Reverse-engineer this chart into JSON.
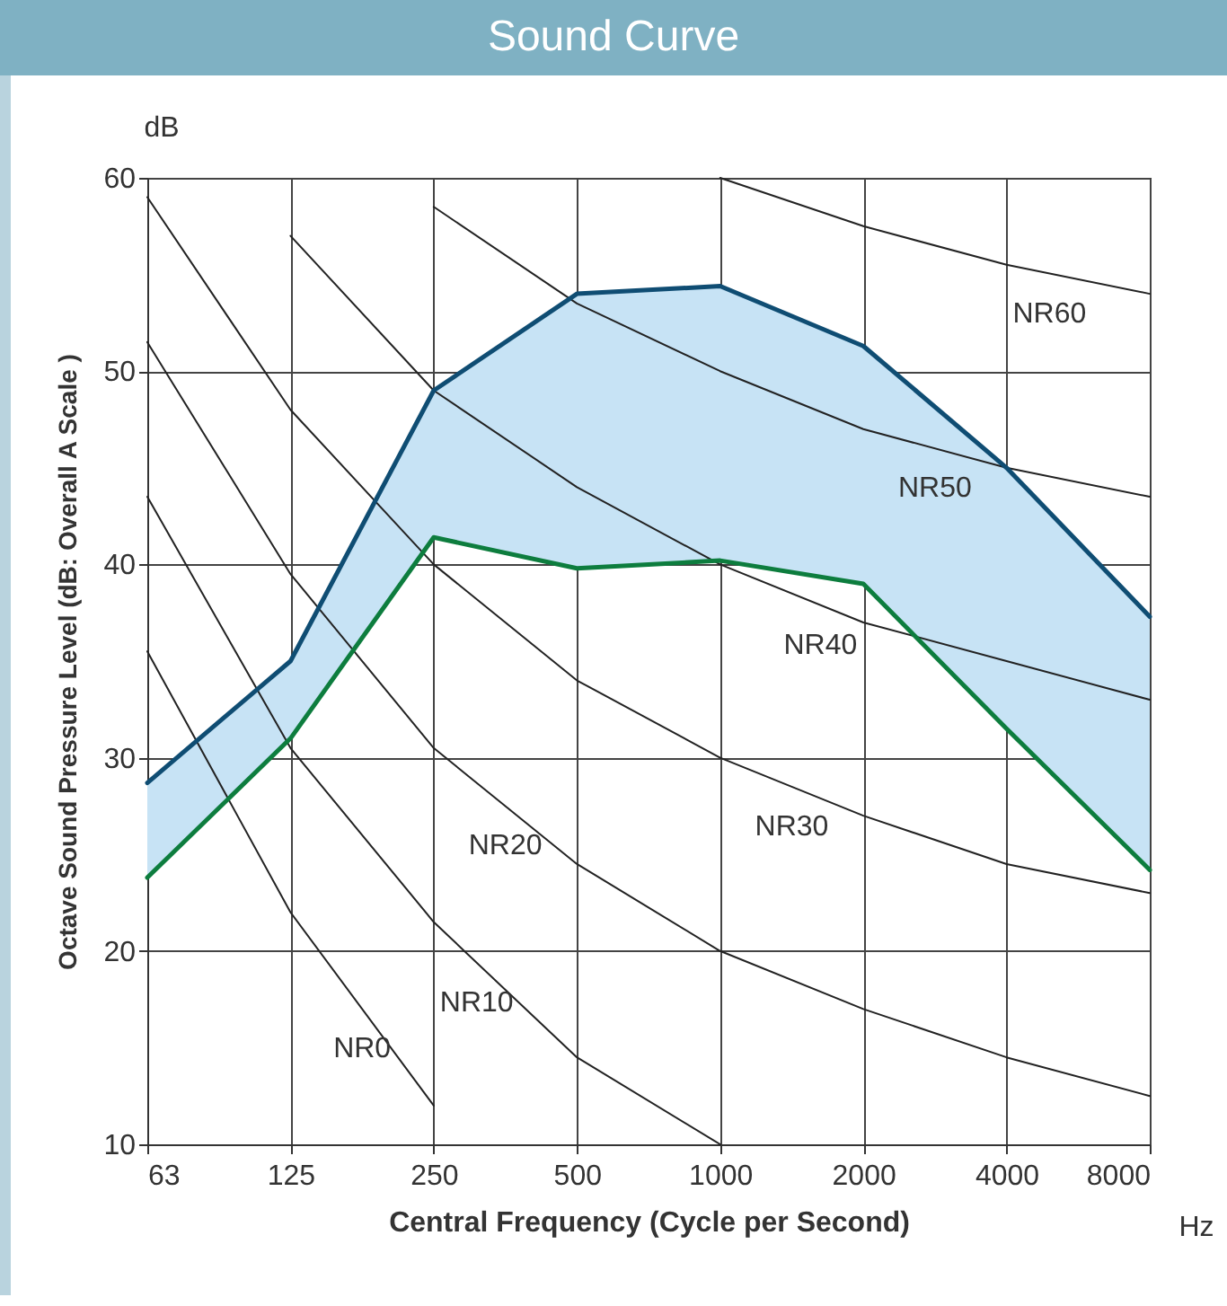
{
  "chart_data": {
    "type": "line",
    "title": "Sound Curve",
    "xlabel": "Central Frequency (Cycle per Second)",
    "ylabel": "Octave Sound Pressure Level (dB: Overall A Scale )",
    "annotations": [
      "dB",
      "Hz"
    ],
    "categories": [
      "63",
      "125",
      "250",
      "500",
      "1000",
      "2000",
      "4000",
      "8000"
    ],
    "ylim": [
      10,
      60
    ],
    "yticks": [
      10,
      20,
      30,
      40,
      50,
      60
    ],
    "grid": true,
    "series": [
      {
        "name": "NR0",
        "color": "#222222",
        "values": [
          35.5,
          22,
          12,
          null,
          null,
          null,
          null,
          null
        ]
      },
      {
        "name": "NR10",
        "color": "#222222",
        "values": [
          43.5,
          30.5,
          21.5,
          14.5,
          10,
          null,
          null,
          null
        ]
      },
      {
        "name": "NR20",
        "color": "#222222",
        "values": [
          51.5,
          39.5,
          30.5,
          24.5,
          20,
          17,
          14.5,
          12.5
        ]
      },
      {
        "name": "NR30",
        "color": "#222222",
        "values": [
          59,
          48,
          40,
          34,
          30,
          27,
          24.5,
          23
        ]
      },
      {
        "name": "NR40",
        "color": "#222222",
        "values": [
          null,
          57,
          49,
          44,
          40,
          37,
          35,
          33
        ]
      },
      {
        "name": "NR50",
        "color": "#222222",
        "values": [
          null,
          null,
          58.5,
          53.5,
          50,
          47,
          45,
          43.5
        ]
      },
      {
        "name": "NR60",
        "color": "#222222",
        "values": [
          null,
          null,
          null,
          null,
          60,
          57.5,
          55.5,
          54
        ]
      },
      {
        "color": "#0f4d73",
        "values": [
          28.7,
          35,
          49,
          54,
          54.4,
          51.3,
          45,
          37.3
        ],
        "lower": [
          23.8,
          31,
          41.4,
          39.8,
          40.2,
          39,
          31.5,
          24.2
        ],
        "upper": [
          28.7,
          35,
          49,
          54,
          54.4,
          51.3,
          45,
          37.3
        ]
      },
      {
        "color": "#0d7d3e",
        "values": [
          23.8,
          31,
          41.4,
          39.8,
          40.2,
          39,
          31.5,
          24.2
        ]
      }
    ]
  }
}
